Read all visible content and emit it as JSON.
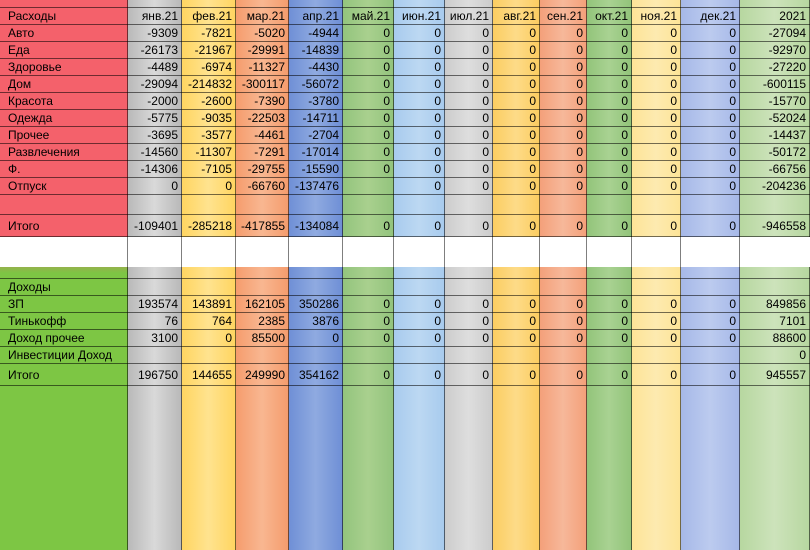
{
  "colors": {
    "label_top": "#f4616b",
    "label_bottom": "#7dc644",
    "months": [
      "#b9b9b9",
      "#ffd561",
      "#f59c6d",
      "#6f8fd6",
      "#93c47d",
      "#a8cbee",
      "#cccccc",
      "#fccd61",
      "#f4a07a",
      "#92c47a",
      "#fde497",
      "#a6b8e8",
      "#b7d7a0"
    ],
    "months_light": [
      "#d9d9d9",
      "#ffe38f",
      "#f8b791",
      "#8faae0",
      "#a9d08e",
      "#bcd8f2",
      "#dedede",
      "#fddb88",
      "#f6b89a",
      "#a9d292",
      "#fdeab0",
      "#bccbef",
      "#cde3bb"
    ]
  },
  "header": {
    "label": "Расходы",
    "months": [
      "янв.21",
      "фев.21",
      "мар.21",
      "апр.21",
      "май.21",
      "июн.21",
      "июл.21",
      "авг.21",
      "сен.21",
      "окт.21",
      "ноя.21",
      "дек.21",
      "2021"
    ]
  },
  "expenses": {
    "rows": [
      {
        "label": "Авто",
        "values": [
          "-9309",
          "-7821",
          "-5020",
          "-4944",
          "0",
          "0",
          "0",
          "0",
          "0",
          "0",
          "0",
          "0",
          "-27094"
        ]
      },
      {
        "label": "Еда",
        "values": [
          "-26173",
          "-21967",
          "-29991",
          "-14839",
          "0",
          "0",
          "0",
          "0",
          "0",
          "0",
          "0",
          "0",
          "-92970"
        ]
      },
      {
        "label": "Здоровье",
        "values": [
          "-4489",
          "-6974",
          "-11327",
          "-4430",
          "0",
          "0",
          "0",
          "0",
          "0",
          "0",
          "0",
          "0",
          "-27220"
        ]
      },
      {
        "label": "Дом",
        "values": [
          "-29094",
          "-214832",
          "-300117",
          "-56072",
          "0",
          "0",
          "0",
          "0",
          "0",
          "0",
          "0",
          "0",
          "-600115"
        ]
      },
      {
        "label": "Красота",
        "values": [
          "-2000",
          "-2600",
          "-7390",
          "-3780",
          "0",
          "0",
          "0",
          "0",
          "0",
          "0",
          "0",
          "0",
          "-15770"
        ]
      },
      {
        "label": "Одежда",
        "values": [
          "-5775",
          "-9035",
          "-22503",
          "-14711",
          "0",
          "0",
          "0",
          "0",
          "0",
          "0",
          "0",
          "0",
          "-52024"
        ]
      },
      {
        "label": "Прочее",
        "values": [
          "-3695",
          "-3577",
          "-4461",
          "-2704",
          "0",
          "0",
          "0",
          "0",
          "0",
          "0",
          "0",
          "0",
          "-14437"
        ]
      },
      {
        "label": "Развлечения",
        "values": [
          "-14560",
          "-11307",
          "-7291",
          "-17014",
          "0",
          "0",
          "0",
          "0",
          "0",
          "0",
          "0",
          "0",
          "-50172"
        ]
      },
      {
        "label": "Ф.",
        "values": [
          "-14306",
          "-7105",
          "-29755",
          "-15590",
          "0",
          "0",
          "0",
          "0",
          "0",
          "0",
          "0",
          "0",
          "-66756"
        ]
      },
      {
        "label": "Отпуск",
        "values": [
          "0",
          "0",
          "-66760",
          "-137476",
          "",
          "0",
          "0",
          "0",
          "0",
          "0",
          "0",
          "0",
          "-204236"
        ]
      }
    ],
    "total": {
      "label": "Итого",
      "values": [
        "-109401",
        "-285218",
        "-417855",
        "-134084",
        "0",
        "0",
        "0",
        "0",
        "0",
        "0",
        "0",
        "0",
        "-946558"
      ]
    }
  },
  "income": {
    "header": "Доходы",
    "rows": [
      {
        "label": "ЗП",
        "values": [
          "193574",
          "143891",
          "162105",
          "350286",
          "0",
          "0",
          "0",
          "0",
          "0",
          "0",
          "0",
          "0",
          "849856"
        ]
      },
      {
        "label": "Тинькофф",
        "values": [
          "76",
          "764",
          "2385",
          "3876",
          "0",
          "0",
          "0",
          "0",
          "0",
          "0",
          "0",
          "0",
          "7101"
        ]
      },
      {
        "label": "Доход прочее",
        "values": [
          "3100",
          "0",
          "85500",
          "0",
          "0",
          "0",
          "0",
          "0",
          "0",
          "0",
          "0",
          "0",
          "88600"
        ]
      },
      {
        "label": "Инвестиции Доход",
        "values": [
          "",
          "",
          "",
          "",
          "",
          "",
          "",
          "",
          "",
          "",
          "",
          "",
          "0"
        ]
      }
    ],
    "total": {
      "label": "Итого",
      "values": [
        "196750",
        "144655",
        "249990",
        "354162",
        "0",
        "0",
        "0",
        "0",
        "0",
        "0",
        "0",
        "0",
        "945557"
      ]
    }
  }
}
